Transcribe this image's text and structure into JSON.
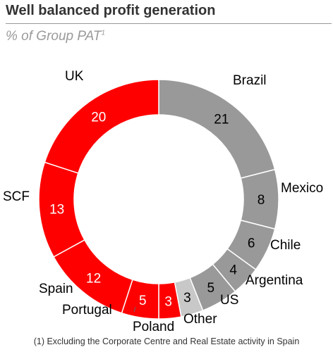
{
  "title": "Well balanced profit generation",
  "subtitle": "% of Group PAT",
  "subtitle_marker": "1",
  "footnote": "(1) Excluding the Corporate Centre and Real Estate activity in Spain",
  "colors": {
    "red": "#ff0000",
    "gray": "#999999",
    "other": "#c8c8c8",
    "separator": "#ffffff"
  },
  "chart_data": {
    "type": "pie",
    "style": "donut",
    "title": "Well balanced profit generation",
    "subtitle": "% of Group PAT",
    "slices": [
      {
        "label": "Brazil",
        "value": 21,
        "group": "gray"
      },
      {
        "label": "Mexico",
        "value": 8,
        "group": "gray"
      },
      {
        "label": "Chile",
        "value": 6,
        "group": "gray"
      },
      {
        "label": "Argentina",
        "value": 4,
        "group": "gray"
      },
      {
        "label": "US",
        "value": 5,
        "group": "gray"
      },
      {
        "label": "Other",
        "value": 3,
        "group": "other"
      },
      {
        "label": "Poland",
        "value": 3,
        "group": "red"
      },
      {
        "label": "Portugal",
        "value": 5,
        "group": "red"
      },
      {
        "label": "Spain",
        "value": 12,
        "group": "red"
      },
      {
        "label": "SCF",
        "value": 13,
        "group": "red"
      },
      {
        "label": "UK",
        "value": 20,
        "group": "red"
      }
    ]
  }
}
